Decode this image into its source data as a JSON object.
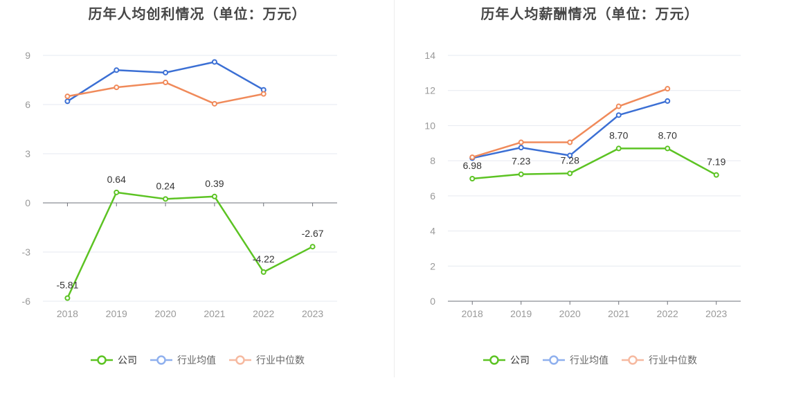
{
  "charts": {
    "left": {
      "title": "历年人均创利情况（单位：万元）",
      "legend": [
        "公司",
        "行业均值",
        "行业中位数"
      ]
    },
    "right": {
      "title": "历年人均薪酬情况（单位：万元）",
      "legend": [
        "公司",
        "行业均值",
        "行业中位数"
      ]
    }
  },
  "colors": {
    "company": "#5cc323",
    "industry_avg": "#3b6fd4",
    "industry_median": "#f08a5a",
    "grid": "#e6e9f0",
    "axis": "#6e7079",
    "label": "#999999",
    "data_label": "#333333"
  },
  "chart_data": [
    {
      "type": "line",
      "title": "历年人均创利情况（单位：万元）",
      "categories": [
        "2018",
        "2019",
        "2020",
        "2021",
        "2022",
        "2023"
      ],
      "ylim": [
        -6,
        9
      ],
      "yticks": [
        -6,
        -3,
        0,
        3,
        6,
        9
      ],
      "ytick_labels": [
        "-6",
        "-3",
        "0",
        "3",
        "6",
        "9"
      ],
      "grid": true,
      "legend_position": "bottom",
      "series": [
        {
          "name": "公司",
          "values": [
            -5.81,
            0.64,
            0.24,
            0.39,
            -4.22,
            -2.67
          ],
          "labels": [
            "-5.81",
            "0.64",
            "0.24",
            "0.39",
            "-4.22",
            "-2.67"
          ]
        },
        {
          "name": "行业均值",
          "values": [
            6.2,
            8.1,
            7.95,
            8.6,
            6.9,
            null
          ]
        },
        {
          "name": "行业中位数",
          "values": [
            6.5,
            7.05,
            7.35,
            6.05,
            6.65,
            null
          ]
        }
      ]
    },
    {
      "type": "line",
      "title": "历年人均薪酬情况（单位：万元）",
      "categories": [
        "2018",
        "2019",
        "2020",
        "2021",
        "2022",
        "2023"
      ],
      "ylim": [
        0,
        14
      ],
      "yticks": [
        0,
        2,
        4,
        6,
        8,
        10,
        12,
        14
      ],
      "ytick_labels": [
        "0",
        "2",
        "4",
        "6",
        "8",
        "10",
        "12",
        "14"
      ],
      "grid": true,
      "legend_position": "bottom",
      "series": [
        {
          "name": "公司",
          "values": [
            6.98,
            7.23,
            7.28,
            8.7,
            8.7,
            7.19
          ],
          "labels": [
            "6.98",
            "7.23",
            "7.28",
            "8.70",
            "8.70",
            "7.19"
          ]
        },
        {
          "name": "行业均值",
          "values": [
            8.15,
            8.75,
            8.3,
            10.6,
            11.4,
            null
          ]
        },
        {
          "name": "行业中位数",
          "values": [
            8.2,
            9.05,
            9.05,
            11.1,
            12.1,
            null
          ]
        }
      ]
    }
  ]
}
